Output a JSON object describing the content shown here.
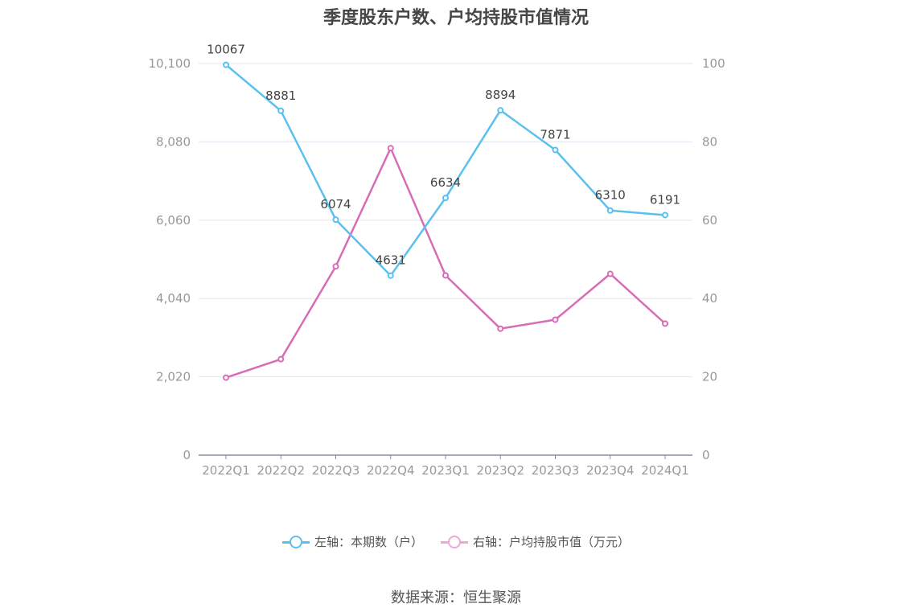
{
  "chart_data": {
    "type": "line",
    "title": "季度股东户数、户均持股市值情况",
    "categories": [
      "2022Q1",
      "2022Q2",
      "2022Q3",
      "2022Q4",
      "2023Q1",
      "2023Q2",
      "2023Q3",
      "2023Q4",
      "2024Q1"
    ],
    "series": [
      {
        "name": "左轴：本期数（户）",
        "axis": "left",
        "color": "#5bc0f0",
        "values": [
          10067,
          8881,
          6074,
          4631,
          6634,
          8894,
          7871,
          6310,
          6191
        ],
        "labels": [
          "10067",
          "8881",
          "6074",
          "4631",
          "6634",
          "8894",
          "7871",
          "6310",
          "6191"
        ]
      },
      {
        "name": "右轴：户均持股市值（万元）",
        "axis": "right",
        "color": "#d86cb5",
        "values": [
          19.8,
          24.5,
          48.2,
          78.4,
          45.9,
          32.3,
          34.6,
          46.3,
          33.6
        ]
      }
    ],
    "y_left": {
      "min": 0,
      "max": 10100,
      "ticks": [
        "0",
        "2,020",
        "4,040",
        "6,060",
        "8,080",
        "10,100"
      ]
    },
    "y_right": {
      "min": 0,
      "max": 100,
      "ticks": [
        "0",
        "20",
        "40",
        "60",
        "80",
        "100"
      ]
    },
    "grid": true,
    "legend_position": "bottom"
  },
  "legend": {
    "left_label": "左轴：本期数（户）",
    "right_label": "右轴：户均持股市值（万元）",
    "left_color": "#5bc0f0",
    "right_color": "#d86cb5",
    "right_icon_color": "#f0a6d6"
  },
  "source": "数据来源：恒生聚源"
}
